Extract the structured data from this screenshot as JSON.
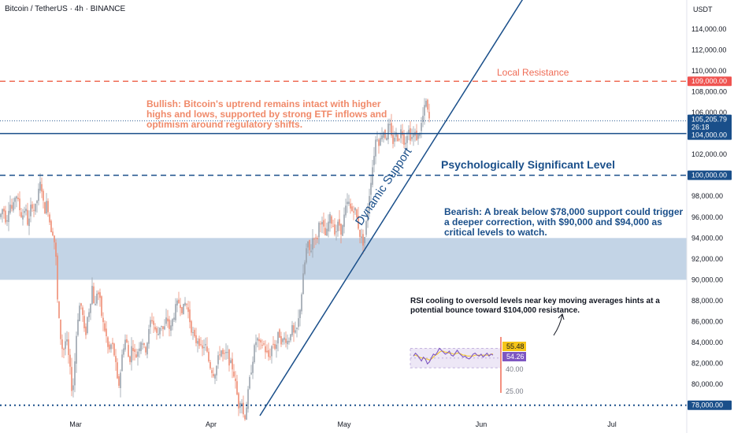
{
  "header": {
    "symbol": "Bitcoin / TetherUS · 4h · BINANCE",
    "currency": "USDT"
  },
  "chart_data": {
    "type": "candlestick",
    "ylim": [
      77000,
      117000
    ],
    "y_ticks": [
      {
        "v": 114000,
        "label": "114,000.00"
      },
      {
        "v": 112000,
        "label": "112,000.00"
      },
      {
        "v": 110000,
        "label": "110,000.00"
      },
      {
        "v": 108000,
        "label": "108,000.00"
      },
      {
        "v": 106000,
        "label": "106,000.00"
      },
      {
        "v": 102000,
        "label": "102,000.00"
      },
      {
        "v": 98000,
        "label": "98,000.00"
      },
      {
        "v": 96000,
        "label": "96,000.00"
      },
      {
        "v": 94000,
        "label": "94,000.00"
      },
      {
        "v": 92000,
        "label": "92,000.00"
      },
      {
        "v": 90000,
        "label": "90,000.00"
      },
      {
        "v": 88000,
        "label": "88,000.00"
      },
      {
        "v": 86000,
        "label": "86,000.00"
      },
      {
        "v": 84000,
        "label": "84,000.00"
      },
      {
        "v": 82000,
        "label": "82,000.00"
      },
      {
        "v": 80000,
        "label": "80,000.00"
      }
    ],
    "x_ticks": [
      "Mar",
      "Apr",
      "May",
      "Jun",
      "Jul"
    ],
    "price_path": [
      [
        0,
        96000
      ],
      [
        4,
        97000
      ],
      [
        8,
        95500
      ],
      [
        12,
        97500
      ],
      [
        16,
        96500
      ],
      [
        20,
        98500
      ],
      [
        24,
        97000
      ],
      [
        28,
        96000
      ],
      [
        32,
        97000
      ],
      [
        36,
        95000
      ],
      [
        40,
        97500
      ],
      [
        44,
        96500
      ],
      [
        48,
        98000
      ],
      [
        52,
        99500
      ],
      [
        56,
        96500
      ],
      [
        60,
        97500
      ],
      [
        64,
        95000
      ],
      [
        68,
        94500
      ],
      [
        71,
        92000
      ],
      [
        73,
        88000
      ],
      [
        76,
        85000
      ],
      [
        80,
        83000
      ],
      [
        84,
        84500
      ],
      [
        88,
        82000
      ],
      [
        92,
        79000
      ],
      [
        94,
        81000
      ],
      [
        98,
        86000
      ],
      [
        102,
        88000
      ],
      [
        106,
        86000
      ],
      [
        108,
        84000
      ],
      [
        110,
        86000
      ],
      [
        114,
        87500
      ],
      [
        118,
        90000
      ],
      [
        120,
        86000
      ],
      [
        122,
        89000
      ],
      [
        126,
        88500
      ],
      [
        130,
        86000
      ],
      [
        134,
        85000
      ],
      [
        138,
        83000
      ],
      [
        142,
        84000
      ],
      [
        146,
        82500
      ],
      [
        150,
        79500
      ],
      [
        152,
        80500
      ],
      [
        156,
        83500
      ],
      [
        160,
        84500
      ],
      [
        164,
        82000
      ],
      [
        168,
        84000
      ],
      [
        172,
        82500
      ],
      [
        176,
        83500
      ],
      [
        180,
        84500
      ],
      [
        184,
        83000
      ],
      [
        188,
        84500
      ],
      [
        192,
        86500
      ],
      [
        196,
        85500
      ],
      [
        200,
        84500
      ],
      [
        204,
        86000
      ],
      [
        208,
        85000
      ],
      [
        212,
        86500
      ],
      [
        216,
        85000
      ],
      [
        220,
        86500
      ],
      [
        224,
        87500
      ],
      [
        228,
        88000
      ],
      [
        232,
        87000
      ],
      [
        236,
        88000
      ],
      [
        240,
        86500
      ],
      [
        244,
        85000
      ],
      [
        248,
        84000
      ],
      [
        252,
        84500
      ],
      [
        256,
        83000
      ],
      [
        260,
        84000
      ],
      [
        264,
        82500
      ],
      [
        268,
        81500
      ],
      [
        272,
        81000
      ],
      [
        276,
        82000
      ],
      [
        280,
        83500
      ],
      [
        284,
        82500
      ],
      [
        288,
        83000
      ],
      [
        292,
        82000
      ],
      [
        296,
        81500
      ],
      [
        300,
        79500
      ],
      [
        303,
        78000
      ],
      [
        306,
        79000
      ],
      [
        310,
        76500
      ],
      [
        314,
        78500
      ],
      [
        318,
        81000
      ],
      [
        322,
        83000
      ],
      [
        326,
        84500
      ],
      [
        330,
        83500
      ],
      [
        334,
        84000
      ],
      [
        338,
        83000
      ],
      [
        342,
        82500
      ],
      [
        346,
        84000
      ],
      [
        350,
        83500
      ],
      [
        354,
        85000
      ],
      [
        358,
        84000
      ],
      [
        362,
        84500
      ],
      [
        366,
        84000
      ],
      [
        370,
        85500
      ],
      [
        374,
        84500
      ],
      [
        378,
        85500
      ],
      [
        382,
        88000
      ],
      [
        386,
        91000
      ],
      [
        390,
        93500
      ],
      [
        394,
        92500
      ],
      [
        398,
        94500
      ],
      [
        402,
        93500
      ],
      [
        406,
        96000
      ],
      [
        410,
        95000
      ],
      [
        414,
        94000
      ],
      [
        418,
        96000
      ],
      [
        422,
        95500
      ],
      [
        426,
        94500
      ],
      [
        430,
        95500
      ],
      [
        434,
        94500
      ],
      [
        438,
        96500
      ],
      [
        442,
        97500
      ],
      [
        446,
        96500
      ],
      [
        450,
        97000
      ],
      [
        454,
        95500
      ],
      [
        458,
        94000
      ],
      [
        462,
        93500
      ],
      [
        466,
        96000
      ],
      [
        470,
        99000
      ],
      [
        474,
        101500
      ],
      [
        478,
        104000
      ],
      [
        482,
        103000
      ],
      [
        486,
        104500
      ],
      [
        490,
        103500
      ],
      [
        494,
        105000
      ],
      [
        498,
        103000
      ],
      [
        502,
        104000
      ],
      [
        506,
        103500
      ],
      [
        510,
        104500
      ],
      [
        514,
        103000
      ],
      [
        518,
        104500
      ],
      [
        522,
        103500
      ],
      [
        526,
        104000
      ],
      [
        530,
        103500
      ],
      [
        534,
        104500
      ],
      [
        538,
        106000
      ],
      [
        541,
        107000
      ],
      [
        544,
        105500
      ],
      [
        546,
        105200
      ]
    ],
    "levels": [
      {
        "name": "local-resistance",
        "price": 109000,
        "label": "109,000.00",
        "style": "dashed",
        "color": "#ef6c56"
      },
      {
        "name": "current-price",
        "price": 105205.79,
        "label": "105,205.79",
        "countdown": "26:18",
        "style": "dotted",
        "color": "#1a4f8a"
      },
      {
        "name": "support-104k",
        "price": 104000,
        "label": "104,000.00",
        "style": "solid",
        "color": "#1a4f8a"
      },
      {
        "name": "psych-level",
        "price": 100000,
        "label": "100,000.00",
        "style": "dashed",
        "color": "#1a4f8a"
      },
      {
        "name": "support-78k",
        "price": 78000,
        "label": "78,000.00",
        "style": "dotted",
        "color": "#1a4f8a"
      }
    ],
    "zone": {
      "from": 90000,
      "to": 94000,
      "color": "#b8cde2"
    },
    "trendline": {
      "x1": 330,
      "p1": 77000,
      "x2": 665,
      "p2": 117000,
      "color": "#1a4f8a"
    }
  },
  "annotations": {
    "local_resistance": "Local Resistance",
    "bullish": [
      "Bullish: Bitcoin's uptrend remains intact with higher",
      "highs and lows, supported by strong ETF inflows and",
      "optimism around regulatory shifts."
    ],
    "psych": "Psychologically Significant Level",
    "bearish": [
      "Bearish: A break below $78,000 support could trigger",
      "a deeper correction, with $90,000 and $94,000 as",
      "critical levels to watch."
    ],
    "dynamic_support": "Dynamic Support",
    "rsi_note": [
      "RSI cooling to oversold levels near key moving averages hints at a",
      "potential bounce toward $104,000 resistance."
    ]
  },
  "rsi_inset": {
    "values": [
      52,
      55,
      53,
      50,
      47,
      51,
      49,
      44,
      46,
      50,
      54,
      53,
      56,
      60,
      58,
      56,
      54,
      55,
      57,
      53,
      52,
      55,
      58,
      55,
      53,
      51,
      52,
      50,
      49,
      51,
      54,
      55,
      53,
      52,
      54,
      51,
      53,
      55,
      52,
      54,
      53
    ],
    "ma": [
      53,
      53,
      52,
      51,
      50,
      50,
      49,
      49,
      48,
      49,
      51,
      53,
      54,
      56,
      57,
      57,
      56,
      56,
      55,
      55,
      54,
      54,
      55,
      55,
      54,
      53,
      53,
      52,
      52,
      52,
      52,
      53,
      53,
      53,
      53,
      53,
      53,
      53,
      53,
      54,
      54
    ],
    "band": [
      40,
      60
    ],
    "tags": [
      {
        "value": "55.48",
        "color": "#f5c518",
        "text": "#131722"
      },
      {
        "value": "54.26",
        "color": "#7e57c2",
        "text": "#ffffff"
      }
    ],
    "labels": [
      "40.00",
      "25.00"
    ]
  }
}
